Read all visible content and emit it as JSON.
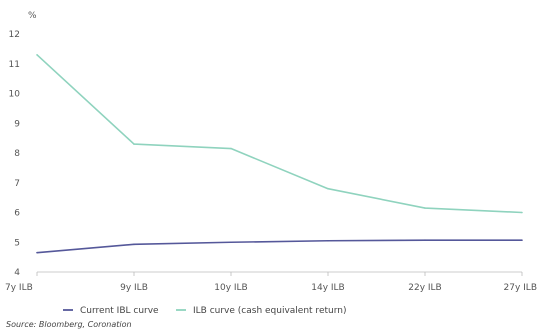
{
  "chart_data": {
    "type": "line",
    "ylabel": "%",
    "categories": [
      "7y ILB",
      "9y ILB",
      "10y ILB",
      "14y ILB",
      "22y ILB",
      "27y ILB"
    ],
    "ylim": [
      4,
      12
    ],
    "yticks": [
      4,
      5,
      6,
      7,
      8,
      9,
      10,
      11,
      12
    ],
    "grid": false,
    "legend_position": "bottom",
    "series": [
      {
        "name": "Current IBL curve",
        "color": "#55589a",
        "values": [
          4.65,
          4.93,
          5.0,
          5.05,
          5.07,
          5.07
        ]
      },
      {
        "name": "ILB curve (cash equivalent return)",
        "color": "#8fd3be",
        "values": [
          11.3,
          8.3,
          8.15,
          6.8,
          6.15,
          6.0
        ]
      }
    ]
  },
  "source": "Source: Bloomberg, Coronation"
}
